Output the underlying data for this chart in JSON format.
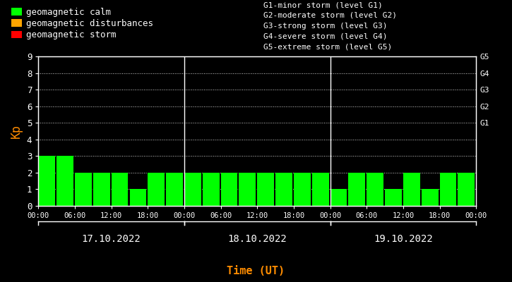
{
  "background_color": "#000000",
  "plot_bg_color": "#000000",
  "bar_color_calm": "#00FF00",
  "bar_color_disturbance": "#FFA500",
  "bar_color_storm": "#FF0000",
  "text_color": "#FFFFFF",
  "axis_color": "#FFFFFF",
  "kp_label_color": "#FF8C00",
  "time_label_color": "#FF8C00",
  "grid_color": "#FFFFFF",
  "vline_color": "#FFFFFF",
  "days": [
    "17.10.2022",
    "18.10.2022",
    "19.10.2022"
  ],
  "kp_values": [
    [
      3,
      3,
      2,
      2,
      2,
      1,
      2,
      2
    ],
    [
      2,
      2,
      2,
      2,
      2,
      2,
      2,
      2
    ],
    [
      1,
      2,
      2,
      1,
      2,
      1,
      2,
      2
    ]
  ],
  "ylim": [
    0,
    9
  ],
  "yticks": [
    0,
    1,
    2,
    3,
    4,
    5,
    6,
    7,
    8,
    9
  ],
  "right_ytick_positions": [
    5,
    6,
    7,
    8,
    9
  ],
  "right_ytick_names": [
    "G1",
    "G2",
    "G3",
    "G4",
    "G5"
  ],
  "legend_calm_label": "geomagnetic calm",
  "legend_dist_label": "geomagnetic disturbances",
  "legend_storm_label": "geomagnetic storm",
  "info_text": "G1-minor storm (level G1)\nG2-moderate storm (level G2)\nG3-strong storm (level G3)\nG4-severe storm (level G4)\nG5-extreme storm (level G5)",
  "ylabel": "Kp",
  "xlabel": "Time (UT)",
  "bar_width": 0.92
}
